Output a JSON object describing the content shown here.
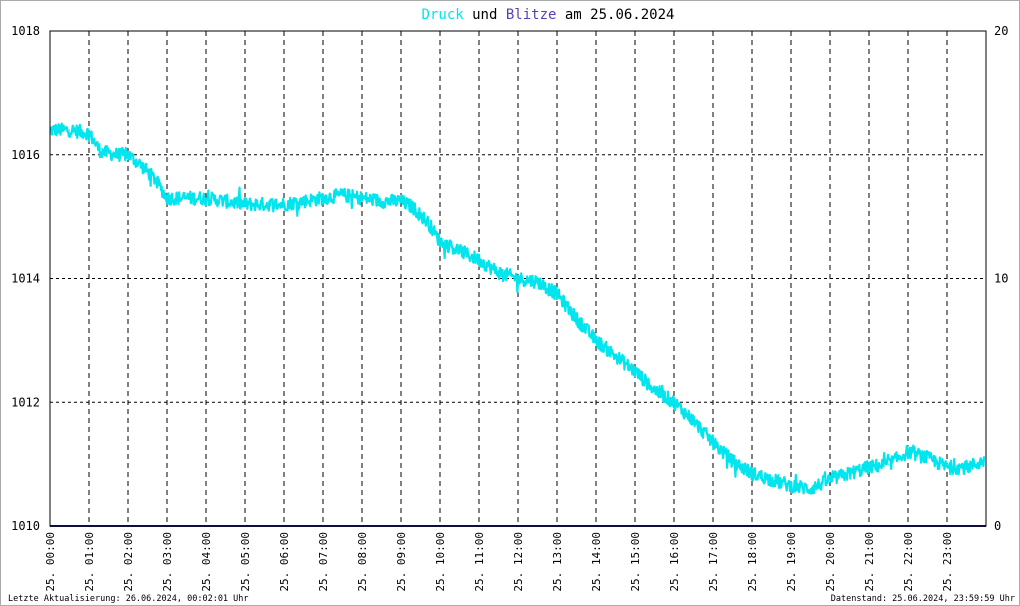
{
  "chart_data": {
    "type": "line",
    "title_parts": [
      {
        "text": "Druck",
        "color": "#00e5ee"
      },
      {
        "text": " und ",
        "color": "#000000"
      },
      {
        "text": "Blitze",
        "color": "#5b3fb5"
      },
      {
        "text": " am 25.06.2024",
        "color": "#000000"
      }
    ],
    "x_tick_labels": [
      "25. 00:00",
      "25. 01:00",
      "25. 02:00",
      "25. 03:00",
      "25. 04:00",
      "25. 05:00",
      "25. 06:00",
      "25. 07:00",
      "25. 08:00",
      "25. 09:00",
      "25. 10:00",
      "25. 11:00",
      "25. 12:00",
      "25. 13:00",
      "25. 14:00",
      "25. 15:00",
      "25. 16:00",
      "25. 17:00",
      "25. 18:00",
      "25. 19:00",
      "25. 20:00",
      "25. 21:00",
      "25. 22:00",
      "25. 23:00"
    ],
    "xlim_hours": [
      0,
      24
    ],
    "y_left": {
      "ticks": [
        1010,
        1012,
        1014,
        1016,
        1018
      ],
      "ylim": [
        1010,
        1018
      ]
    },
    "y_right": {
      "ticks": [
        0,
        10,
        20
      ],
      "ylim": [
        0,
        20
      ]
    },
    "grid": true,
    "series": [
      {
        "name": "Druck",
        "color": "#00e5ee",
        "axis": "left",
        "x_hours": [
          0.0,
          0.5,
          1.0,
          1.3,
          1.7,
          2.0,
          2.3,
          2.7,
          3.0,
          3.3,
          4.0,
          5.0,
          6.0,
          7.0,
          7.5,
          8.0,
          8.5,
          9.0,
          9.3,
          9.7,
          10.0,
          10.5,
          11.0,
          11.5,
          12.0,
          12.5,
          13.0,
          13.5,
          14.0,
          14.5,
          15.0,
          15.5,
          16.0,
          16.5,
          17.0,
          17.5,
          18.0,
          18.5,
          19.0,
          19.5,
          20.0,
          20.5,
          21.0,
          21.5,
          22.0,
          22.5,
          23.0,
          23.5,
          23.95
        ],
        "values": [
          1016.4,
          1016.4,
          1016.35,
          1016.05,
          1016.0,
          1016.0,
          1015.85,
          1015.6,
          1015.3,
          1015.3,
          1015.3,
          1015.2,
          1015.2,
          1015.3,
          1015.35,
          1015.3,
          1015.25,
          1015.25,
          1015.15,
          1014.9,
          1014.6,
          1014.45,
          1014.3,
          1014.1,
          1014.0,
          1013.95,
          1013.75,
          1013.35,
          1013.0,
          1012.75,
          1012.5,
          1012.2,
          1012.0,
          1011.7,
          1011.35,
          1011.05,
          1010.85,
          1010.75,
          1010.65,
          1010.6,
          1010.75,
          1010.85,
          1010.95,
          1011.0,
          1011.2,
          1011.1,
          1010.95,
          1010.95,
          1011.05
        ]
      },
      {
        "name": "Blitze",
        "color": "#1a1a80",
        "axis": "right",
        "x_hours": [
          0,
          24
        ],
        "values": [
          0,
          0
        ]
      }
    ]
  },
  "footer": {
    "left": "Letzte Aktualisierung: 26.06.2024, 00:02:01 Uhr",
    "right": "Datenstand: 25.06.2024, 23:59:59 Uhr"
  }
}
